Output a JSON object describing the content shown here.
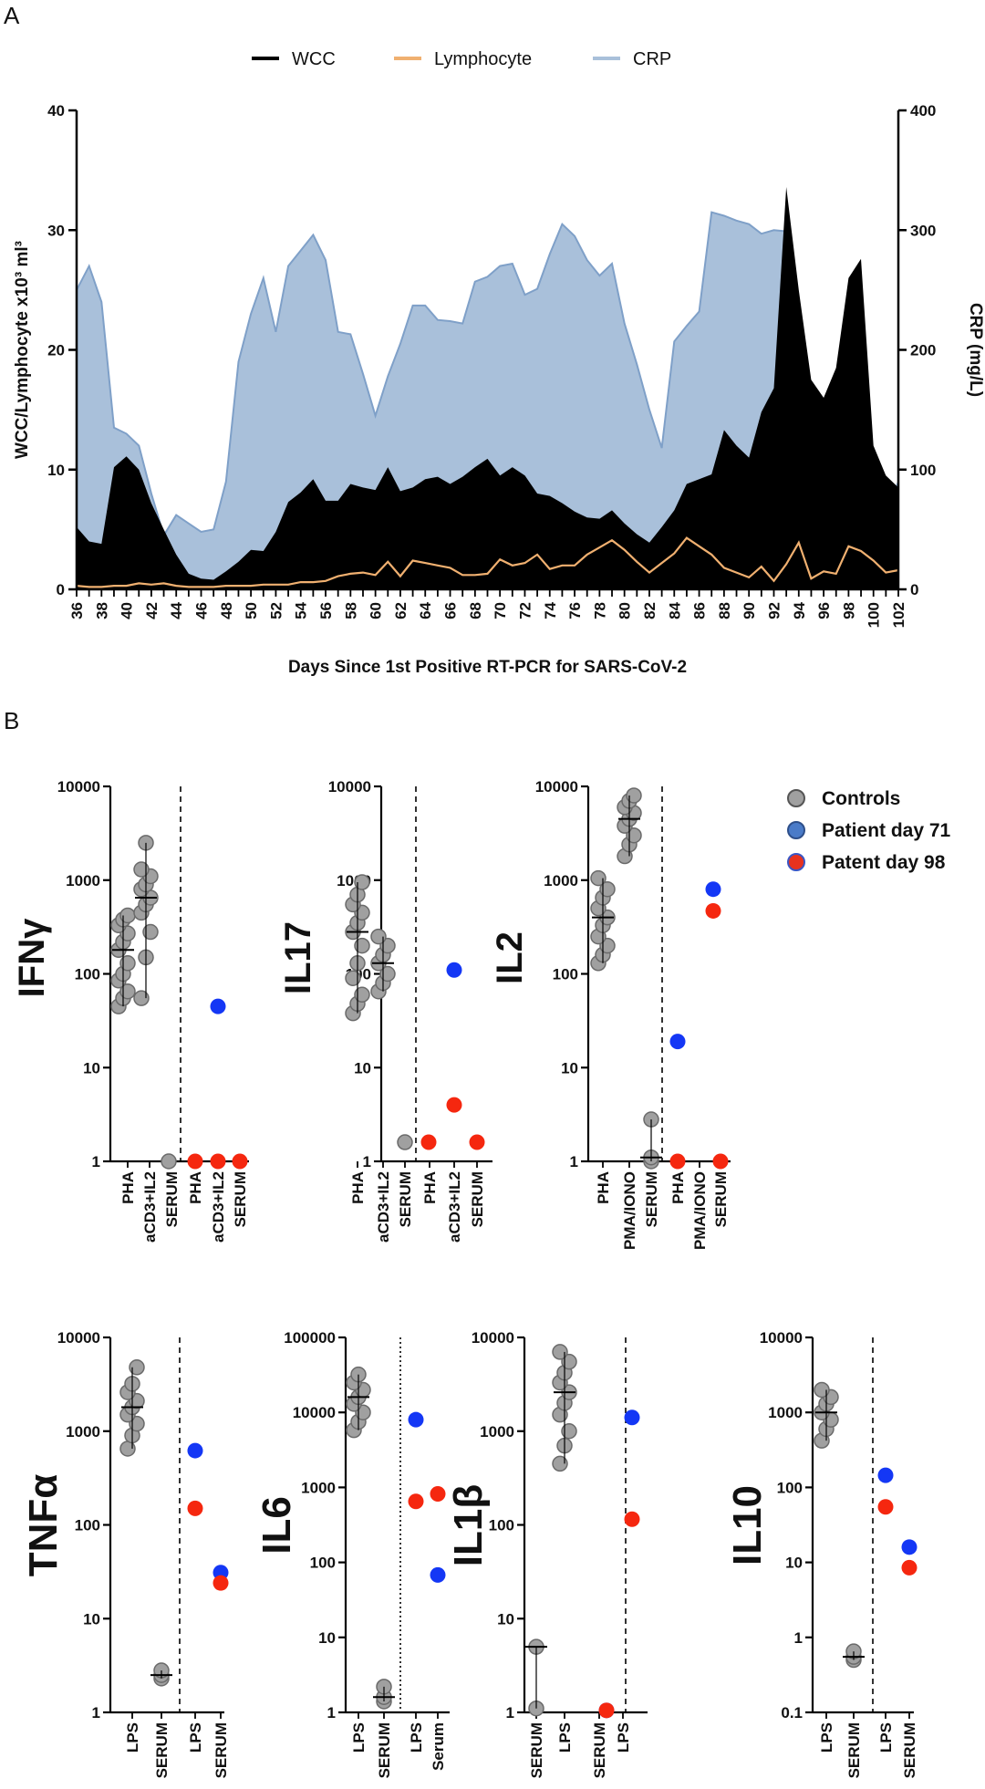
{
  "panels": {
    "a": "A",
    "b": "B"
  },
  "chart_data": [
    {
      "type": "area",
      "legend": [
        "WCC",
        "Lymphocyte",
        "CRP"
      ],
      "legend_position": "top-center",
      "colors": {
        "WCC": "#000000",
        "Lymphocyte": "#f0b070",
        "CRP": "#a9c0da",
        "CRP_line": "#7fa0c8"
      },
      "xlabel": "Days Since 1st Positive RT-PCR for SARS-CoV-2",
      "ylabel": "WCC/Lymphocyte x10³ ml³",
      "y2label": "CRP (mg/L)",
      "ylim": [
        0,
        40
      ],
      "y2lim": [
        0,
        400
      ],
      "yticks": [
        "0",
        "10",
        "20",
        "30",
        "40"
      ],
      "y2ticks": [
        "0",
        "100",
        "200",
        "300",
        "400"
      ],
      "x": [
        36,
        37,
        38,
        39,
        40,
        41,
        42,
        43,
        44,
        45,
        46,
        47,
        48,
        49,
        50,
        51,
        52,
        53,
        54,
        55,
        56,
        57,
        58,
        59,
        60,
        61,
        62,
        63,
        64,
        65,
        66,
        67,
        68,
        69,
        70,
        71,
        72,
        73,
        74,
        75,
        76,
        77,
        78,
        79,
        80,
        81,
        82,
        83,
        84,
        85,
        86,
        87,
        88,
        89,
        90,
        91,
        92,
        93,
        94,
        95,
        96,
        97,
        98,
        99,
        100,
        101,
        102
      ],
      "xticks": [
        "36",
        "38",
        "40",
        "42",
        "44",
        "46",
        "48",
        "50",
        "52",
        "54",
        "56",
        "58",
        "60",
        "62",
        "64",
        "66",
        "68",
        "70",
        "72",
        "74",
        "76",
        "78",
        "80",
        "82",
        "84",
        "86",
        "88",
        "90",
        "92",
        "94",
        "96",
        "98",
        "100",
        "102"
      ],
      "series": [
        {
          "name": "WCC",
          "values": [
            5.2,
            4,
            3.8,
            10.2,
            11.1,
            10,
            7.2,
            5,
            2.9,
            1.3,
            0.9,
            0.8,
            1.5,
            2.3,
            3.3,
            3.2,
            4.8,
            7.3,
            8.1,
            9.2,
            7.4,
            7.4,
            8.8,
            8.5,
            8.3,
            10.2,
            8.2,
            8.5,
            9.2,
            9.4,
            8.8,
            9.4,
            10.2,
            10.9,
            9.5,
            10.2,
            9.5,
            8,
            7.8,
            7.2,
            6.5,
            6,
            5.9,
            6.6,
            5.5,
            4.6,
            3.9,
            5.2,
            6.6,
            8.8,
            9.2,
            9.6,
            13.3,
            12,
            11,
            14.8,
            16.8,
            33.6,
            25,
            17.5,
            16,
            18.5,
            26,
            27.6,
            12,
            9.5,
            8.5
          ]
        },
        {
          "name": "Lymphocyte",
          "values": [
            0.3,
            0.2,
            0.2,
            0.3,
            0.3,
            0.5,
            0.4,
            0.5,
            0.3,
            0.2,
            0.2,
            0.2,
            0.3,
            0.3,
            0.3,
            0.4,
            0.4,
            0.4,
            0.6,
            0.6,
            0.7,
            1.1,
            1.3,
            1.4,
            1.2,
            2.3,
            1.1,
            2.4,
            2.2,
            2,
            1.8,
            1.2,
            1.2,
            1.3,
            2.5,
            2,
            2.2,
            2.9,
            1.7,
            2,
            2,
            2.9,
            3.5,
            4.1,
            3.3,
            2.3,
            1.4,
            2.2,
            3,
            4.3,
            3.6,
            2.9,
            1.8,
            1.4,
            1,
            1.9,
            0.7,
            2.1,
            3.9,
            0.9,
            1.5,
            1.3,
            3.6,
            3.2,
            2.4,
            1.4,
            1.6
          ]
        },
        {
          "name": "CRP",
          "values": [
            250,
            270,
            240,
            135,
            130,
            120,
            80,
            45,
            62,
            55,
            48,
            50,
            90,
            190,
            230,
            260,
            215,
            270,
            283,
            296,
            275,
            215,
            213,
            180,
            145,
            178,
            205,
            237,
            237,
            225,
            224,
            222,
            257,
            261,
            270,
            272,
            246,
            251,
            280,
            305,
            295,
            275,
            262,
            272,
            222,
            188,
            150,
            118,
            207,
            220,
            232,
            315,
            312,
            308,
            305,
            297,
            300,
            299,
            240,
            165,
            100,
            60,
            40,
            30,
            30,
            60,
            90
          ]
        }
      ]
    },
    {
      "type": "scatter",
      "ylabel": "IFNγ",
      "yscale": "log",
      "ylim": [
        1,
        10000
      ],
      "yticks": [
        "1",
        "10",
        "100",
        "1000",
        "10000"
      ],
      "categories": [
        "PHA",
        "aCD3+IL2",
        "SERUM",
        "PHA",
        "aCD3+IL2",
        "SERUM"
      ],
      "series": [
        {
          "name": "Controls",
          "values": [
            [
              45,
              55,
              65,
              85,
              100,
              130,
              180,
              220,
              270,
              330,
              380,
              420
            ],
            [
              55,
              150,
              280,
              450,
              550,
              650,
              800,
              900,
              1100,
              1300,
              2500
            ],
            [
              1
            ]
          ]
        },
        {
          "name": "Patient day 71",
          "values": [
            null,
            null,
            null,
            null,
            45,
            null
          ]
        },
        {
          "name": "Patent day 98",
          "values": [
            null,
            null,
            null,
            1,
            1,
            1
          ]
        }
      ]
    },
    {
      "type": "scatter",
      "ylabel": "IL17",
      "yscale": "log",
      "ylim": [
        1,
        10000
      ],
      "yticks": [
        "1",
        "10",
        "100",
        "1000",
        "10000"
      ],
      "categories": [
        "PHA",
        "aCD3+IL2",
        "SERUM",
        "PHA",
        "aCD3+IL2",
        "SERUM"
      ],
      "series": [
        {
          "name": "Controls",
          "values": [
            [
              38,
              48,
              60,
              90,
              130,
              200,
              280,
              350,
              450,
              550,
              700,
              950
            ],
            [
              65,
              80,
              100,
              130,
              160,
              200,
              250
            ],
            [
              1.6
            ]
          ]
        },
        {
          "name": "Patient day 71",
          "values": [
            null,
            null,
            null,
            null,
            110,
            null
          ]
        },
        {
          "name": "Patent day 98",
          "values": [
            null,
            null,
            null,
            1.6,
            4,
            1.6
          ]
        }
      ]
    },
    {
      "type": "scatter",
      "ylabel": "IL2",
      "yscale": "log",
      "ylim": [
        1,
        10000
      ],
      "yticks": [
        "1",
        "10",
        "100",
        "1000",
        "10000"
      ],
      "categories": [
        "PHA",
        "PMA/IONO",
        "SERUM",
        "PHA",
        "PMA/IONO",
        "SERUM"
      ],
      "series": [
        {
          "name": "Controls",
          "values": [
            [
              130,
              160,
              200,
              250,
              330,
              400,
              500,
              650,
              800,
              1050
            ],
            [
              1800,
              2400,
              3000,
              3800,
              4500,
              5200,
              6000,
              7000,
              8000
            ],
            [
              1,
              1.1,
              2.8
            ]
          ]
        },
        {
          "name": "Patient day 71",
          "values": [
            null,
            null,
            null,
            19,
            800,
            null
          ]
        },
        {
          "name": "Patent day 98",
          "values": [
            null,
            null,
            null,
            1,
            470,
            1
          ]
        }
      ]
    },
    {
      "type": "scatter",
      "ylabel": "TNFα",
      "yscale": "log",
      "ylim": [
        1,
        10000
      ],
      "yticks": [
        "1",
        "10",
        "100",
        "1000",
        "10000"
      ],
      "categories": [
        "LPS",
        "SERUM",
        "LPS",
        "SERUM"
      ],
      "series": [
        {
          "name": "Controls",
          "values": [
            [
              650,
              900,
              1200,
              1500,
              1800,
              2100,
              2600,
              3200,
              4800
            ],
            [
              2.3,
              2.5,
              2.8
            ]
          ]
        },
        {
          "name": "Patient day 71",
          "values": [
            null,
            null,
            620,
            31
          ]
        },
        {
          "name": "Patent day 98",
          "values": [
            null,
            null,
            150,
            24
          ]
        }
      ]
    },
    {
      "type": "scatter",
      "ylabel": "IL6",
      "yscale": "log",
      "ylim": [
        1,
        100000
      ],
      "yticks": [
        "1",
        "10",
        "100",
        "1000",
        "10000",
        "100000"
      ],
      "categories": [
        "LPS",
        "SERUM",
        "LPS",
        "Serum"
      ],
      "series": [
        {
          "name": "Controls",
          "values": [
            [
              5800,
              7500,
              10000,
              13000,
              16000,
              20000,
              25000,
              32000
            ],
            [
              1.4,
              1.6,
              2.2
            ]
          ]
        },
        {
          "name": "Patient day 71",
          "values": [
            null,
            null,
            8000,
            68
          ]
        },
        {
          "name": "Patent day 98",
          "values": [
            null,
            null,
            650,
            820
          ]
        }
      ]
    },
    {
      "type": "scatter",
      "ylabel": "IL1β",
      "yscale": "log",
      "ylim": [
        1,
        10000
      ],
      "yticks": [
        "1",
        "10",
        "100",
        "1000",
        "10000"
      ],
      "categories": [
        "SERUM",
        "LPS",
        "SERUM",
        "LPS"
      ],
      "series": [
        {
          "name": "Controls",
          "values": [
            [
              1.1,
              5
            ],
            [
              450,
              700,
              1000,
              1500,
              2000,
              2600,
              3300,
              4200,
              5500,
              7000
            ]
          ]
        },
        {
          "name": "Patient day 71",
          "values": [
            null,
            null,
            1.05,
            1400
          ]
        },
        {
          "name": "Patent day 98",
          "values": [
            null,
            null,
            1.05,
            115
          ]
        }
      ]
    },
    {
      "type": "scatter",
      "ylabel": "IL10",
      "yscale": "log",
      "ylim": [
        0.1,
        10000
      ],
      "yticks": [
        "0.1",
        "1",
        "10",
        "100",
        "1000",
        "10000"
      ],
      "categories": [
        "LPS",
        "SERUM",
        "LPS",
        "SERUM"
      ],
      "series": [
        {
          "name": "Controls",
          "values": [
            [
              420,
              600,
              800,
              1000,
              1300,
              1600,
              2000
            ],
            [
              0.5,
              0.55,
              0.65
            ]
          ]
        },
        {
          "name": "Patient day 71",
          "values": [
            null,
            null,
            145,
            16
          ]
        },
        {
          "name": "Patent day 98",
          "values": [
            null,
            null,
            55,
            8.5
          ]
        }
      ]
    }
  ],
  "legend_b": [
    {
      "label": "Controls",
      "fill": "#a0a0a0",
      "stroke": "#555555"
    },
    {
      "label": "Patient day 71",
      "fill": "#4a7bc8",
      "stroke": "#2e4f8a"
    },
    {
      "label": "Patent day 98",
      "fill": "#e8321e",
      "stroke": "#3a56c4"
    }
  ],
  "colors": {
    "control": "#a0a0a0",
    "control_stroke": "#6a6a6a",
    "day71": "#1437f5",
    "day98": "#f5270f"
  }
}
